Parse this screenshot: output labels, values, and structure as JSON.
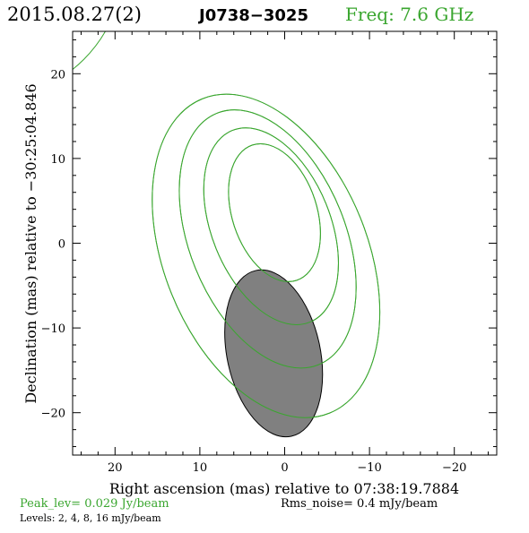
{
  "header": {
    "date": "2015.08.27(2)",
    "source": "J0738−3025",
    "freq": "Freq: 7.6 GHz"
  },
  "footer": {
    "peak": "Peak_lev=  0.029 Jy/beam",
    "rms": "Rms_noise=   0.4 mJy/beam",
    "levels": "Levels:   2,    4,    8,   16 mJy/beam"
  },
  "colors": {
    "contour": "#3aa62f",
    "beam_fill": "#808080",
    "axis": "#000000"
  },
  "chart_data": {
    "type": "contour",
    "xlabel": "Right ascension (mas) relative to 07:38:19.7884",
    "ylabel": "Declination (mas) relative to −30:25:04.846",
    "xlim": [
      25,
      -25
    ],
    "ylim": [
      -25,
      25
    ],
    "x_ticks": [
      20,
      10,
      0,
      -10,
      -20
    ],
    "y_ticks": [
      20,
      10,
      0,
      -10,
      -20
    ],
    "x_tick_labels": [
      "20",
      "10",
      "0",
      "−10",
      "−20"
    ],
    "y_tick_labels": [
      "20",
      "10",
      "0",
      "−10",
      "−20"
    ],
    "contour_levels_mJy": [
      2,
      4,
      8,
      16
    ],
    "contours": [
      {
        "level": 2,
        "cx": 2.2,
        "cy": -1.5,
        "a": 12.0,
        "b": 20.0,
        "angle": -22
      },
      {
        "level": 4,
        "cx": 2.0,
        "cy": 0.5,
        "a": 9.2,
        "b": 16.0,
        "angle": -22
      },
      {
        "level": 8,
        "cx": 1.6,
        "cy": 2.0,
        "a": 7.0,
        "b": 12.2,
        "angle": -22
      },
      {
        "level": 16,
        "cx": 1.2,
        "cy": 3.6,
        "a": 5.0,
        "b": 8.4,
        "angle": -18
      }
    ],
    "corner_contour": {
      "level": 2,
      "cx": 35,
      "cy": 33,
      "a": 16,
      "b": 16,
      "angle": 0
    },
    "beam": {
      "cx": 1.3,
      "cy": -13.0,
      "a": 5.5,
      "b": 10.0,
      "angle": -12
    }
  }
}
